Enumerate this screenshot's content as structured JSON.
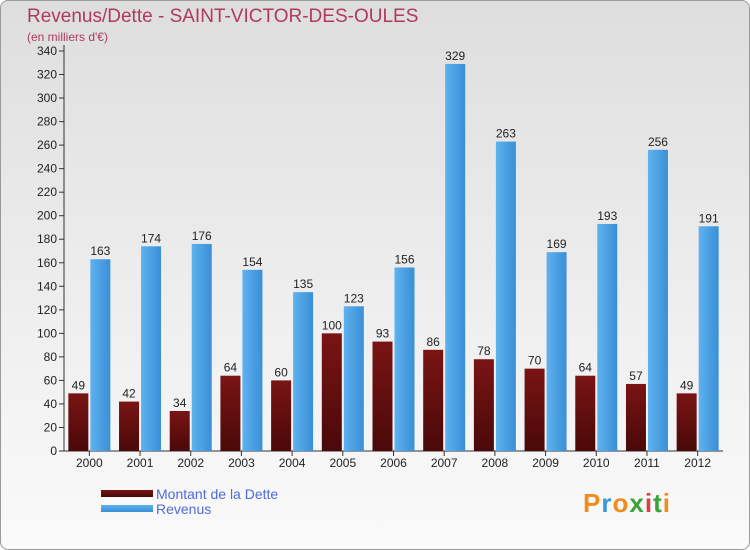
{
  "title": "Revenus/Dette - SAINT-VICTOR-DES-OULES",
  "subtitle": "(en milliers d'€)",
  "legend": {
    "dette": "Montant de la Dette",
    "revenus": "Revenus"
  },
  "logo": "Proxiti",
  "colors": {
    "dette": "#6e1111",
    "revenus": "#3d97de",
    "title": "#b03a5b"
  },
  "chart_data": {
    "type": "bar",
    "title": "Revenus/Dette - SAINT-VICTOR-DES-OULES",
    "ylabel": "(en milliers d'€)",
    "xlabel": "",
    "categories": [
      "2000",
      "2001",
      "2002",
      "2003",
      "2004",
      "2005",
      "2006",
      "2007",
      "2008",
      "2009",
      "2010",
      "2011",
      "2012"
    ],
    "series": [
      {
        "name": "Montant de la Dette",
        "values": [
          49,
          42,
          34,
          64,
          60,
          100,
          93,
          86,
          78,
          70,
          64,
          57,
          49
        ]
      },
      {
        "name": "Revenus",
        "values": [
          163,
          174,
          176,
          154,
          135,
          123,
          156,
          329,
          263,
          169,
          193,
          256,
          191
        ]
      }
    ],
    "ylim": [
      0,
      340
    ],
    "yticks": [
      0,
      20,
      40,
      60,
      80,
      100,
      120,
      140,
      160,
      180,
      200,
      220,
      240,
      260,
      280,
      300,
      320,
      340
    ],
    "grid": false,
    "legend_position": "bottom-left"
  }
}
